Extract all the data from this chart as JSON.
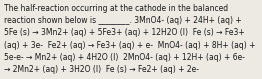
{
  "lines": [
    "The half-reaction occurring at the cathode in the balanced",
    "reaction shown below is ________. 3MnO4- (aq) + 24H+ (aq) +",
    "5Fe (s) → 3Mn2+ (aq) + 5Fe3+ (aq) + 12H2O (l)  Fe (s) → Fe3+",
    "(aq) + 3e-  Fe2+ (aq) → Fe3+ (aq) + e-  MnO4- (aq) + 8H+ (aq) +",
    "5e-e- → Mn2+ (aq) + 4H2O (l)  2MnO4- (aq) + 12H+ (aq) + 6e-",
    "→ 2Mn2+ (aq) + 3H2O (l)  Fe (s) → Fe2+ (aq) + 2e-"
  ],
  "font_size": 5.5,
  "text_color": "#1a1a1a",
  "bg_color": "#ede9e3",
  "fig_width": 2.62,
  "fig_height": 0.79,
  "dpi": 100
}
